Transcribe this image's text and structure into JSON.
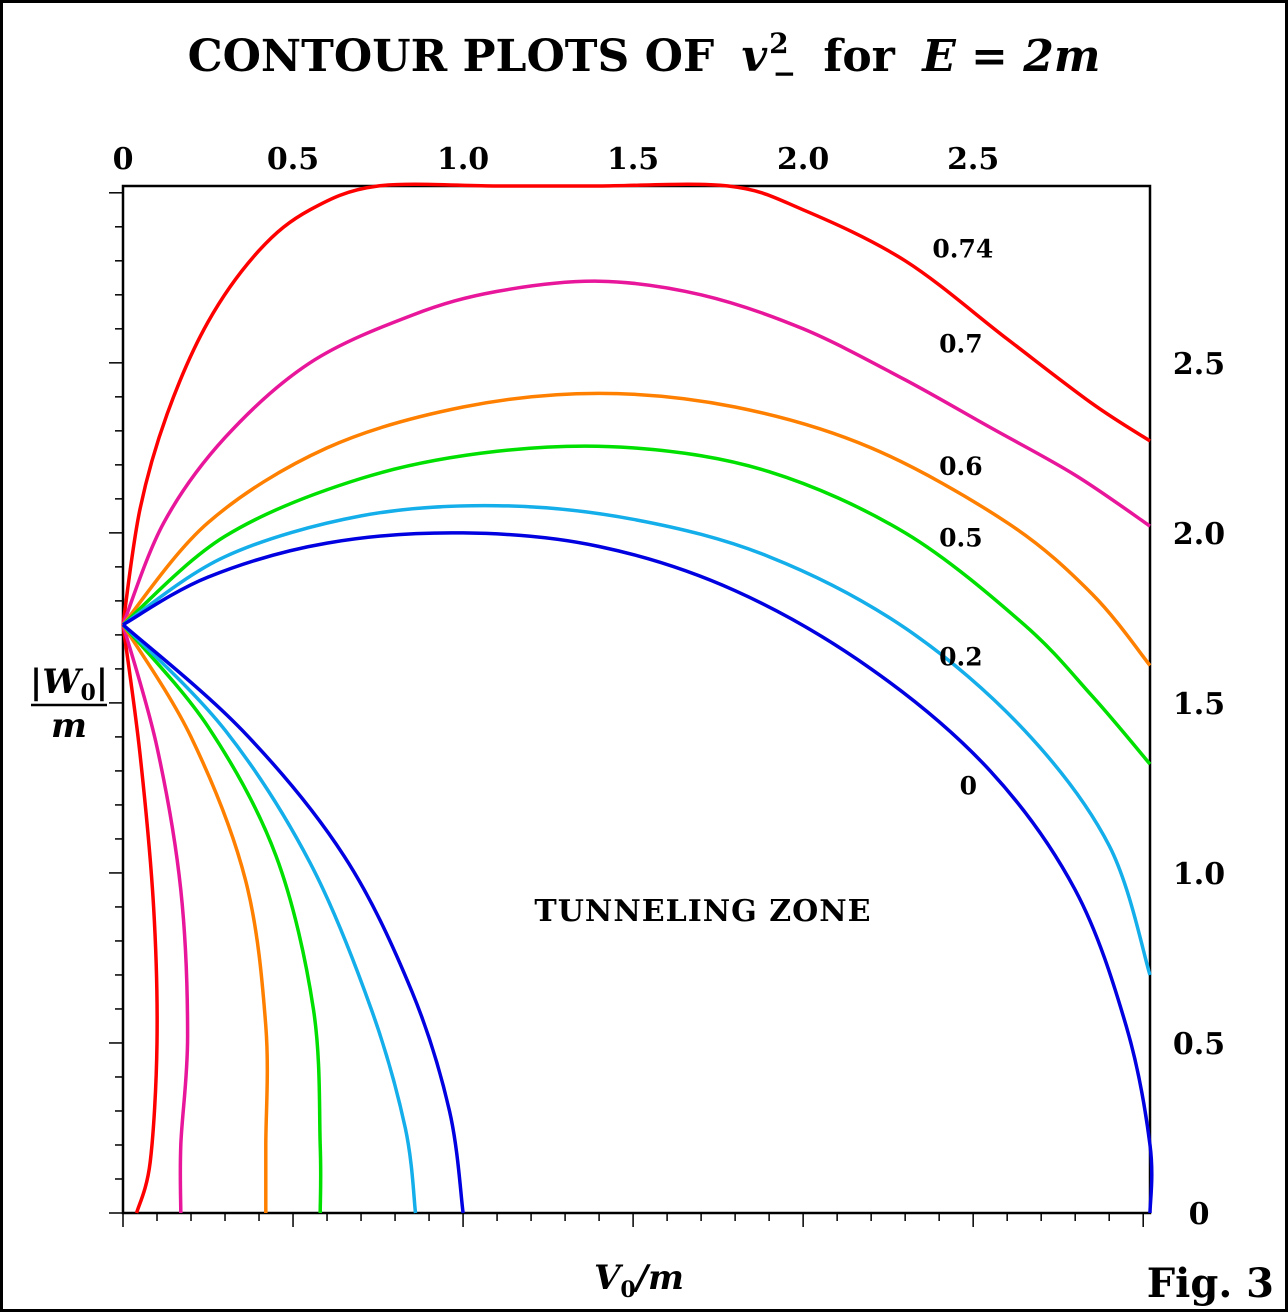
{
  "chart_data": {
    "type": "line",
    "title_parts": {
      "prefix": "CONTOUR PLOTS OF",
      "var": "v",
      "sup": "2",
      "sub": "−",
      "middle": "for",
      "eq": "E = 2m"
    },
    "xlabel": {
      "main": "V",
      "sub": "0",
      "rest": "/m"
    },
    "ylabel": {
      "num_main": "|W",
      "num_sub": "0",
      "num_end": "|",
      "den": "m"
    },
    "xlim": [
      0,
      3.02
    ],
    "ylim": [
      0,
      3.02
    ],
    "x_ticks": [
      "0",
      "0.5",
      "1.0",
      "1.5",
      "2.0",
      "2.5"
    ],
    "x_tick_values": [
      0,
      0.5,
      1.0,
      1.5,
      2.0,
      2.5
    ],
    "y_ticks": [
      "0",
      "0.5",
      "1.0",
      "1.5",
      "2.0",
      "2.5"
    ],
    "y_tick_values": [
      0,
      0.5,
      1.0,
      1.5,
      2.0,
      2.5
    ],
    "zone_label": "TUNNELING ZONE",
    "fig_label": "Fig. 3",
    "series": [
      {
        "name": "0.74",
        "color": "#ff0000",
        "upper": [
          [
            0,
            1.73
          ],
          [
            0.05,
            2.07
          ],
          [
            0.13,
            2.35
          ],
          [
            0.25,
            2.62
          ],
          [
            0.4,
            2.83
          ],
          [
            0.55,
            2.95
          ],
          [
            0.75,
            3.02
          ],
          [
            1.1,
            3.02
          ],
          [
            1.4,
            3.02
          ],
          [
            1.78,
            3.02
          ],
          [
            2.0,
            2.95
          ],
          [
            2.3,
            2.8
          ],
          [
            2.6,
            2.57
          ],
          [
            2.85,
            2.38
          ],
          [
            3.02,
            2.27
          ]
        ],
        "lower": [
          [
            0,
            1.73
          ],
          [
            0.05,
            1.35
          ],
          [
            0.09,
            0.9
          ],
          [
            0.1,
            0.5
          ],
          [
            0.08,
            0.15
          ],
          [
            0.04,
            0
          ]
        ],
        "label_at": [
          2.38,
          2.81
        ]
      },
      {
        "name": "0.7",
        "color": "#e8169a",
        "upper": [
          [
            0,
            1.73
          ],
          [
            0.12,
            2.03
          ],
          [
            0.3,
            2.28
          ],
          [
            0.55,
            2.5
          ],
          [
            0.85,
            2.64
          ],
          [
            1.1,
            2.71
          ],
          [
            1.4,
            2.74
          ],
          [
            1.7,
            2.7
          ],
          [
            2.0,
            2.6
          ],
          [
            2.3,
            2.45
          ],
          [
            2.55,
            2.31
          ],
          [
            2.8,
            2.17
          ],
          [
            3.02,
            2.02
          ]
        ],
        "lower": [
          [
            0,
            1.73
          ],
          [
            0.1,
            1.37
          ],
          [
            0.17,
            0.95
          ],
          [
            0.19,
            0.52
          ],
          [
            0.17,
            0.2
          ],
          [
            0.17,
            0
          ]
        ],
        "label_at": [
          2.4,
          2.53
        ]
      },
      {
        "name": "0.6",
        "color": "#ff8000",
        "upper": [
          [
            0,
            1.73
          ],
          [
            0.25,
            2.03
          ],
          [
            0.6,
            2.25
          ],
          [
            1.0,
            2.37
          ],
          [
            1.4,
            2.41
          ],
          [
            1.8,
            2.37
          ],
          [
            2.2,
            2.25
          ],
          [
            2.6,
            2.03
          ],
          [
            2.85,
            1.82
          ],
          [
            3.02,
            1.61
          ]
        ],
        "lower": [
          [
            0,
            1.73
          ],
          [
            0.2,
            1.4
          ],
          [
            0.36,
            0.98
          ],
          [
            0.42,
            0.55
          ],
          [
            0.42,
            0.2
          ],
          [
            0.42,
            0
          ]
        ],
        "label_at": [
          2.4,
          2.17
        ]
      },
      {
        "name": "0.5",
        "color": "#00e000",
        "upper": [
          [
            0,
            1.73
          ],
          [
            0.3,
            1.99
          ],
          [
            0.7,
            2.16
          ],
          [
            1.1,
            2.24
          ],
          [
            1.5,
            2.25
          ],
          [
            1.9,
            2.18
          ],
          [
            2.3,
            2.0
          ],
          [
            2.65,
            1.73
          ],
          [
            2.85,
            1.52
          ],
          [
            3.02,
            1.32
          ]
        ],
        "lower": [
          [
            0,
            1.73
          ],
          [
            0.25,
            1.43
          ],
          [
            0.45,
            1.05
          ],
          [
            0.56,
            0.6
          ],
          [
            0.58,
            0.2
          ],
          [
            0.58,
            0
          ]
        ],
        "label_at": [
          2.4,
          1.96
        ]
      },
      {
        "name": "0.2",
        "color": "#14aeea",
        "upper": [
          [
            0,
            1.73
          ],
          [
            0.3,
            1.93
          ],
          [
            0.7,
            2.05
          ],
          [
            1.1,
            2.08
          ],
          [
            1.5,
            2.04
          ],
          [
            1.9,
            1.93
          ],
          [
            2.3,
            1.72
          ],
          [
            2.65,
            1.42
          ],
          [
            2.9,
            1.08
          ],
          [
            3.02,
            0.7
          ]
        ],
        "lower": [
          [
            0,
            1.73
          ],
          [
            0.3,
            1.42
          ],
          [
            0.55,
            1.03
          ],
          [
            0.73,
            0.6
          ],
          [
            0.83,
            0.25
          ],
          [
            0.86,
            0
          ]
        ],
        "label_at": [
          2.4,
          1.61
        ]
      },
      {
        "name": "0",
        "color": "#0000e0",
        "upper": [
          [
            0,
            1.73
          ],
          [
            0.25,
            1.87
          ],
          [
            0.6,
            1.97
          ],
          [
            1.0,
            2.0
          ],
          [
            1.4,
            1.96
          ],
          [
            1.8,
            1.83
          ],
          [
            2.2,
            1.6
          ],
          [
            2.55,
            1.3
          ],
          [
            2.8,
            0.95
          ],
          [
            2.95,
            0.55
          ],
          [
            3.02,
            0.2
          ],
          [
            3.02,
            0
          ]
        ],
        "lower": [
          [
            0,
            1.73
          ],
          [
            0.35,
            1.42
          ],
          [
            0.65,
            1.05
          ],
          [
            0.85,
            0.65
          ],
          [
            0.96,
            0.3
          ],
          [
            1.0,
            0
          ]
        ],
        "label_at": [
          2.46,
          1.23
        ]
      }
    ]
  }
}
